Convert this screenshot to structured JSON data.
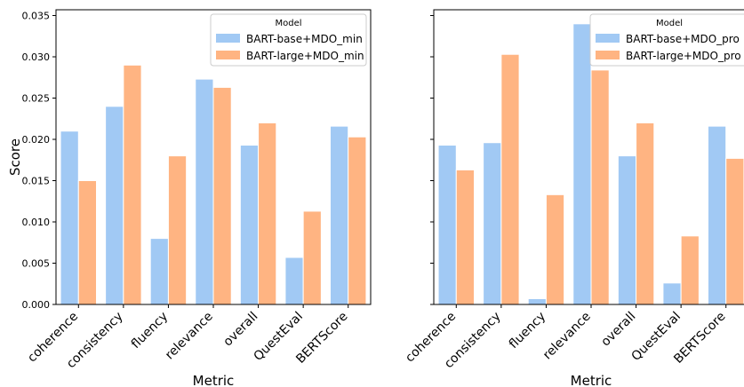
{
  "chart_data": [
    {
      "type": "bar",
      "categories": [
        "coherence",
        "consistency",
        "fluency",
        "relevance",
        "overall",
        "QuestEval",
        "BERTScore"
      ],
      "series": [
        {
          "name": "BART-base+MDO_min",
          "color": "#a1c9f4",
          "values": [
            0.021,
            0.024,
            0.008,
            0.0273,
            0.0193,
            0.0057,
            0.0216
          ]
        },
        {
          "name": "BART-large+MDO_min",
          "color": "#ffb482",
          "values": [
            0.015,
            0.029,
            0.018,
            0.0263,
            0.022,
            0.0113,
            0.0203
          ]
        }
      ],
      "xlabel": "Metric",
      "ylabel": "Score",
      "ylim": [
        0,
        0.0357
      ],
      "yticks": [
        0.0,
        0.005,
        0.01,
        0.015,
        0.02,
        0.025,
        0.03,
        0.035
      ],
      "ytick_labels": [
        "0.000",
        "0.005",
        "0.010",
        "0.015",
        "0.020",
        "0.025",
        "0.030",
        "0.035"
      ],
      "legend_title": "Model",
      "legend_position": "top-right",
      "grid": false
    },
    {
      "type": "bar",
      "categories": [
        "coherence",
        "consistency",
        "fluency",
        "relevance",
        "overall",
        "QuestEval",
        "BERTScore"
      ],
      "series": [
        {
          "name": "BART-base+MDO_pro",
          "color": "#a1c9f4",
          "values": [
            0.0193,
            0.0196,
            0.0007,
            0.034,
            0.018,
            0.0026,
            0.0216
          ]
        },
        {
          "name": "BART-large+MDO_pro",
          "color": "#ffb482",
          "values": [
            0.0163,
            0.0303,
            0.0133,
            0.0284,
            0.022,
            0.0083,
            0.0177
          ]
        }
      ],
      "xlabel": "Metric",
      "ylabel": "",
      "ylim": [
        0,
        0.0357
      ],
      "legend_title": "Model",
      "legend_position": "top-right",
      "grid": false
    }
  ]
}
